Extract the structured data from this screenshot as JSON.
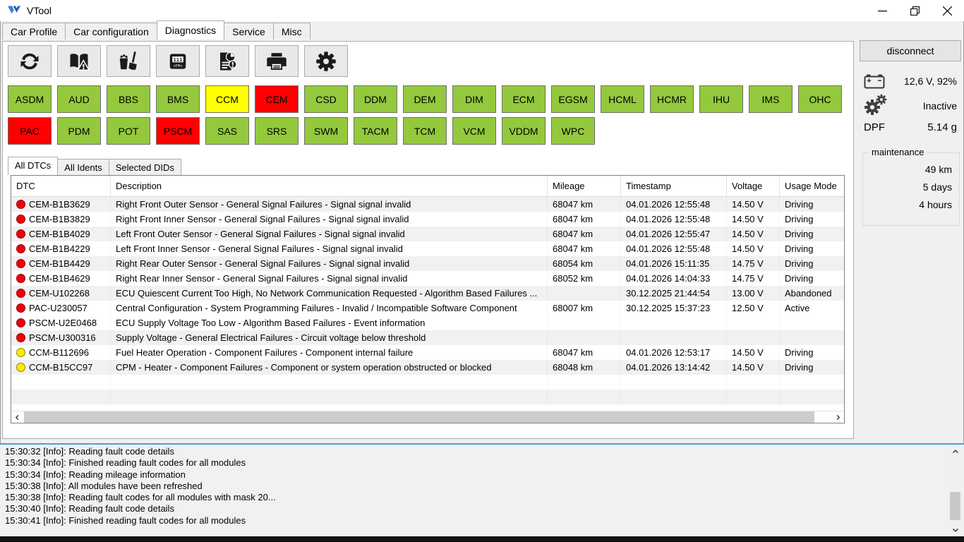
{
  "window": {
    "title": "VTool"
  },
  "tabs": [
    {
      "label": "Car Profile",
      "active": false
    },
    {
      "label": "Car configuration",
      "active": false
    },
    {
      "label": "Diagnostics",
      "active": true
    },
    {
      "label": "Service",
      "active": false
    },
    {
      "label": "Misc",
      "active": false
    }
  ],
  "toolbar": {
    "buttons": [
      {
        "name": "refresh",
        "icon": "refresh-icon"
      },
      {
        "name": "read-fault-codes",
        "icon": "fault-code-book-warning-icon"
      },
      {
        "name": "clear-fault-codes",
        "icon": "clean-broom-trash-icon"
      },
      {
        "name": "odometer",
        "icon": "odometer-display-icon"
      },
      {
        "name": "report",
        "icon": "report-clock-alert-icon"
      },
      {
        "name": "print",
        "icon": "printer-icon"
      },
      {
        "name": "settings",
        "icon": "gear-icon"
      }
    ]
  },
  "modules": [
    {
      "label": "ASDM",
      "status": "ok"
    },
    {
      "label": "AUD",
      "status": "ok"
    },
    {
      "label": "BBS",
      "status": "ok"
    },
    {
      "label": "BMS",
      "status": "ok"
    },
    {
      "label": "CCM",
      "status": "warning"
    },
    {
      "label": "CEM",
      "status": "error"
    },
    {
      "label": "CSD",
      "status": "ok"
    },
    {
      "label": "DDM",
      "status": "ok"
    },
    {
      "label": "DEM",
      "status": "ok"
    },
    {
      "label": "DIM",
      "status": "ok"
    },
    {
      "label": "ECM",
      "status": "ok"
    },
    {
      "label": "EGSM",
      "status": "ok"
    },
    {
      "label": "HCML",
      "status": "ok"
    },
    {
      "label": "HCMR",
      "status": "ok"
    },
    {
      "label": "IHU",
      "status": "ok"
    },
    {
      "label": "IMS",
      "status": "ok"
    },
    {
      "label": "OHC",
      "status": "ok"
    },
    {
      "label": "PAC",
      "status": "error"
    },
    {
      "label": "PDM",
      "status": "ok"
    },
    {
      "label": "POT",
      "status": "ok"
    },
    {
      "label": "PSCM",
      "status": "error"
    },
    {
      "label": "SAS",
      "status": "ok"
    },
    {
      "label": "SRS",
      "status": "ok"
    },
    {
      "label": "SWM",
      "status": "ok"
    },
    {
      "label": "TACM",
      "status": "ok"
    },
    {
      "label": "TCM",
      "status": "ok"
    },
    {
      "label": "VCM",
      "status": "ok"
    },
    {
      "label": "VDDM",
      "status": "ok"
    },
    {
      "label": "WPC",
      "status": "ok"
    }
  ],
  "subtabs": [
    {
      "label": "All DTCs",
      "active": true
    },
    {
      "label": "All Idents",
      "active": false
    },
    {
      "label": "Selected DIDs",
      "active": false
    }
  ],
  "table": {
    "columns": [
      "DTC",
      "Description",
      "Mileage",
      "Timestamp",
      "Voltage",
      "Usage Mode"
    ],
    "rows": [
      {
        "severity": "red",
        "dtc": "CEM-B1B3629",
        "description": "Right Front Outer Sensor - General Signal Failures - Signal signal invalid",
        "mileage": "68047 km",
        "timestamp": "04.01.2026 12:55:48",
        "voltage": "14.50 V",
        "usage_mode": "Driving"
      },
      {
        "severity": "red",
        "dtc": "CEM-B1B3829",
        "description": "Right Front Inner Sensor - General Signal Failures - Signal signal invalid",
        "mileage": "68047 km",
        "timestamp": "04.01.2026 12:55:48",
        "voltage": "14.50 V",
        "usage_mode": "Driving"
      },
      {
        "severity": "red",
        "dtc": "CEM-B1B4029",
        "description": "Left Front Outer Sensor - General Signal Failures - Signal signal invalid",
        "mileage": "68047 km",
        "timestamp": "04.01.2026 12:55:47",
        "voltage": "14.50 V",
        "usage_mode": "Driving"
      },
      {
        "severity": "red",
        "dtc": "CEM-B1B4229",
        "description": "Left Front Inner Sensor - General Signal Failures - Signal signal invalid",
        "mileage": "68047 km",
        "timestamp": "04.01.2026 12:55:48",
        "voltage": "14.50 V",
        "usage_mode": "Driving"
      },
      {
        "severity": "red",
        "dtc": "CEM-B1B4429",
        "description": "Right Rear Outer Sensor - General Signal Failures - Signal signal invalid",
        "mileage": "68054 km",
        "timestamp": "04.01.2026 15:11:35",
        "voltage": "14.75 V",
        "usage_mode": "Driving"
      },
      {
        "severity": "red",
        "dtc": "CEM-B1B4629",
        "description": "Right Rear Inner Sensor - General Signal Failures - Signal signal invalid",
        "mileage": "68052 km",
        "timestamp": "04.01.2026 14:04:33",
        "voltage": "14.75 V",
        "usage_mode": "Driving"
      },
      {
        "severity": "red",
        "dtc": "CEM-U102268",
        "description": "ECU Quiescent Current Too High, No Network Communication Requested - Algorithm Based Failures ...",
        "mileage": "",
        "timestamp": "30.12.2025 21:44:54",
        "voltage": "13.00 V",
        "usage_mode": "Abandoned"
      },
      {
        "severity": "red",
        "dtc": "PAC-U230057",
        "description": "Central Configuration - System Programming Failures - Invalid / Incompatible Software Component",
        "mileage": "68007 km",
        "timestamp": "30.12.2025 15:37:23",
        "voltage": "12.50 V",
        "usage_mode": "Active"
      },
      {
        "severity": "red",
        "dtc": "PSCM-U2E0468",
        "description": "ECU Supply Voltage Too Low - Algorithm Based Failures - Event information",
        "mileage": "",
        "timestamp": "",
        "voltage": "",
        "usage_mode": ""
      },
      {
        "severity": "red",
        "dtc": "PSCM-U300316",
        "description": "Supply Voltage - General Electrical Failures - Circuit voltage below threshold",
        "mileage": "",
        "timestamp": "",
        "voltage": "",
        "usage_mode": ""
      },
      {
        "severity": "yellow",
        "dtc": "CCM-B112696",
        "description": "Fuel Heater Operation - Component Failures - Component internal failure",
        "mileage": "68047 km",
        "timestamp": "04.01.2026 12:53:17",
        "voltage": "14.50 V",
        "usage_mode": "Driving"
      },
      {
        "severity": "yellow",
        "dtc": "CCM-B15CC97",
        "description": "CPM - Heater - Component Failures - Component or system operation obstructed or blocked",
        "mileage": "68048 km",
        "timestamp": "04.01.2026 13:14:42",
        "voltage": "14.50 V",
        "usage_mode": "Driving"
      }
    ]
  },
  "sidebar": {
    "disconnect_label": "disconnect",
    "battery_value": "12,6 V, 92%",
    "transmission_value": "Inactive",
    "dpf_label": "DPF",
    "dpf_value": "5.14 g",
    "maintenance": {
      "title": "maintenance",
      "items": [
        "49 km",
        "5 days",
        "4 hours"
      ]
    }
  },
  "log": {
    "lines": [
      "15:30:32 [Info]: Reading fault code details",
      "15:30:34 [Info]: Finished reading fault codes for all modules",
      "15:30:34 [Info]: Reading mileage information",
      "15:30:38 [Info]: All modules have been refreshed",
      "15:30:38 [Info]: Reading fault codes for all modules with mask 20...",
      "15:30:40 [Info]: Reading fault code details",
      "15:30:41 [Info]: Finished reading fault codes for all modules"
    ]
  },
  "colors": {
    "module_ok": "#94c83d",
    "module_warning": "#ffff00",
    "module_error": "#ff0000",
    "severity_red": "#f00008",
    "severity_yellow": "#ffe900",
    "log_accent": "#45a1dc"
  }
}
